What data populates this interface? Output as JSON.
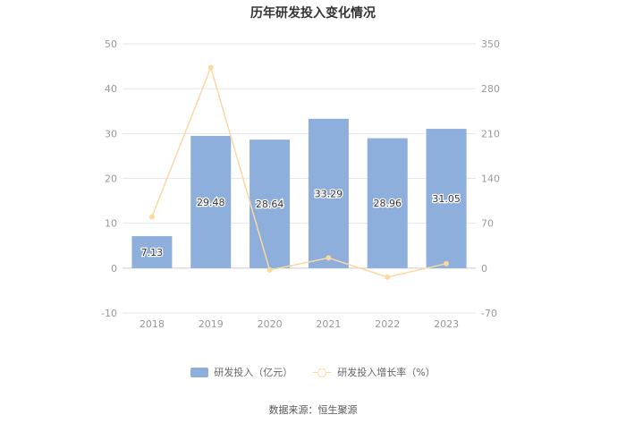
{
  "chart_data": {
    "type": "bar",
    "title": "历年研发投入变化情况",
    "categories": [
      "2018",
      "2019",
      "2020",
      "2021",
      "2022",
      "2023"
    ],
    "series": [
      {
        "name": "研发投入（亿元）",
        "type": "bar",
        "axis": "left",
        "values": [
          7.13,
          29.48,
          28.64,
          33.29,
          28.96,
          31.05
        ],
        "labels": [
          "7.13",
          "29.48",
          "28.64",
          "33.29",
          "28.96",
          "31.05"
        ],
        "color": "#8eaedb"
      },
      {
        "name": "研发投入增长率（%）",
        "type": "line",
        "axis": "right",
        "values": [
          80,
          313,
          -3,
          16,
          -14,
          7
        ],
        "color": "#fcd8a0"
      }
    ],
    "left_axis": {
      "min": -10,
      "max": 50,
      "ticks": [
        "50",
        "40",
        "30",
        "20",
        "10",
        "0",
        "-10"
      ]
    },
    "right_axis": {
      "min": -70,
      "max": 350,
      "ticks": [
        "350",
        "280",
        "210",
        "140",
        "70",
        "0",
        "-70"
      ]
    },
    "grid": true,
    "legend_position": "bottom"
  },
  "source": "数据来源：恒生聚源"
}
